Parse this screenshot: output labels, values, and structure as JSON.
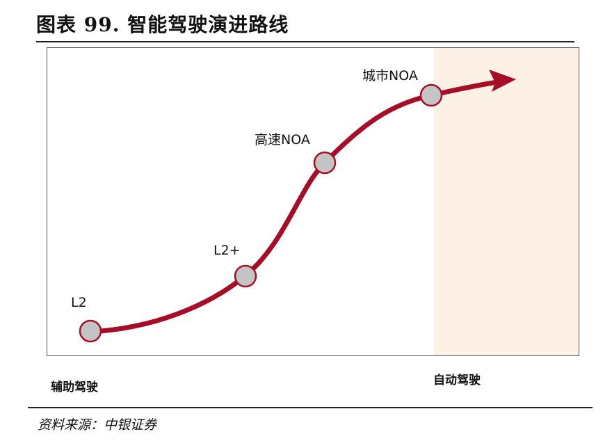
{
  "title": "图表 99. 智能驾驶演进路线",
  "stages": [
    {
      "label": "L2"
    },
    {
      "label": "L2+"
    },
    {
      "label": "高速NOA"
    },
    {
      "label": "城市NOA"
    }
  ],
  "regions": {
    "left": "辅助驾驶",
    "right": "自动驾驶"
  },
  "source": "资料来源：中银证券",
  "colors": {
    "curve": "#a50e26",
    "node": "#c4c4c4",
    "shade": "#fdf0e4"
  }
}
